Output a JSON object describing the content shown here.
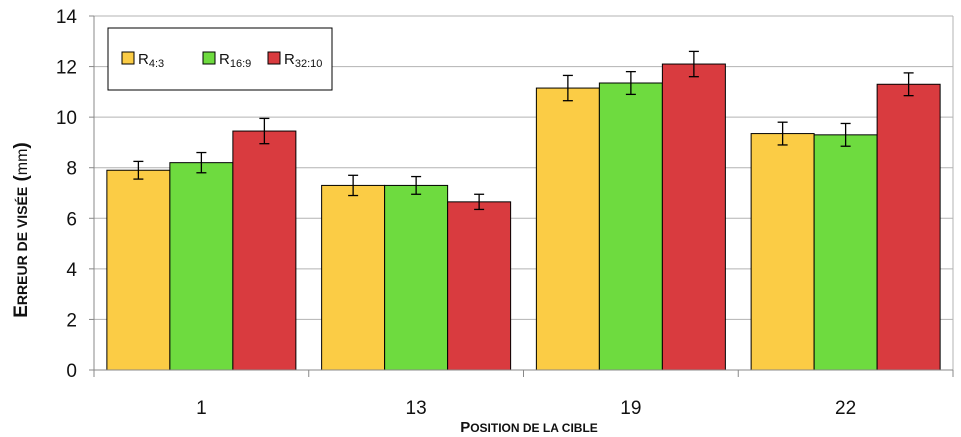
{
  "chart_data": {
    "type": "bar",
    "categories": [
      "1",
      "13",
      "19",
      "22"
    ],
    "series": [
      {
        "name": "R4:3",
        "label_main": "R",
        "label_sub": "4:3",
        "color": "#fbcc45",
        "values": [
          7.9,
          7.3,
          11.15,
          9.35
        ],
        "errors": [
          0.35,
          0.4,
          0.5,
          0.45
        ]
      },
      {
        "name": "R16:9",
        "label_main": "R",
        "label_sub": "16:9",
        "color": "#6edb3f",
        "values": [
          8.2,
          7.3,
          11.35,
          9.3
        ],
        "errors": [
          0.4,
          0.35,
          0.45,
          0.45
        ]
      },
      {
        "name": "R32:10",
        "label_main": "R",
        "label_sub": "32:10",
        "color": "#d93b3f",
        "values": [
          9.45,
          6.65,
          12.1,
          11.3
        ],
        "errors": [
          0.5,
          0.3,
          0.5,
          0.45
        ]
      }
    ],
    "xlabel": {
      "first": "P",
      "rest": "OSITION DE LA CIBLE"
    },
    "ylabel": {
      "w1_first": "E",
      "w1_rest": "RREUR DE VISÉE",
      "unit": "mm"
    },
    "ylim": [
      0,
      14
    ],
    "yticks": [
      "0",
      "2",
      "4",
      "6",
      "8",
      "10",
      "12",
      "14"
    ],
    "grid": true,
    "legend_position": "top-left"
  }
}
